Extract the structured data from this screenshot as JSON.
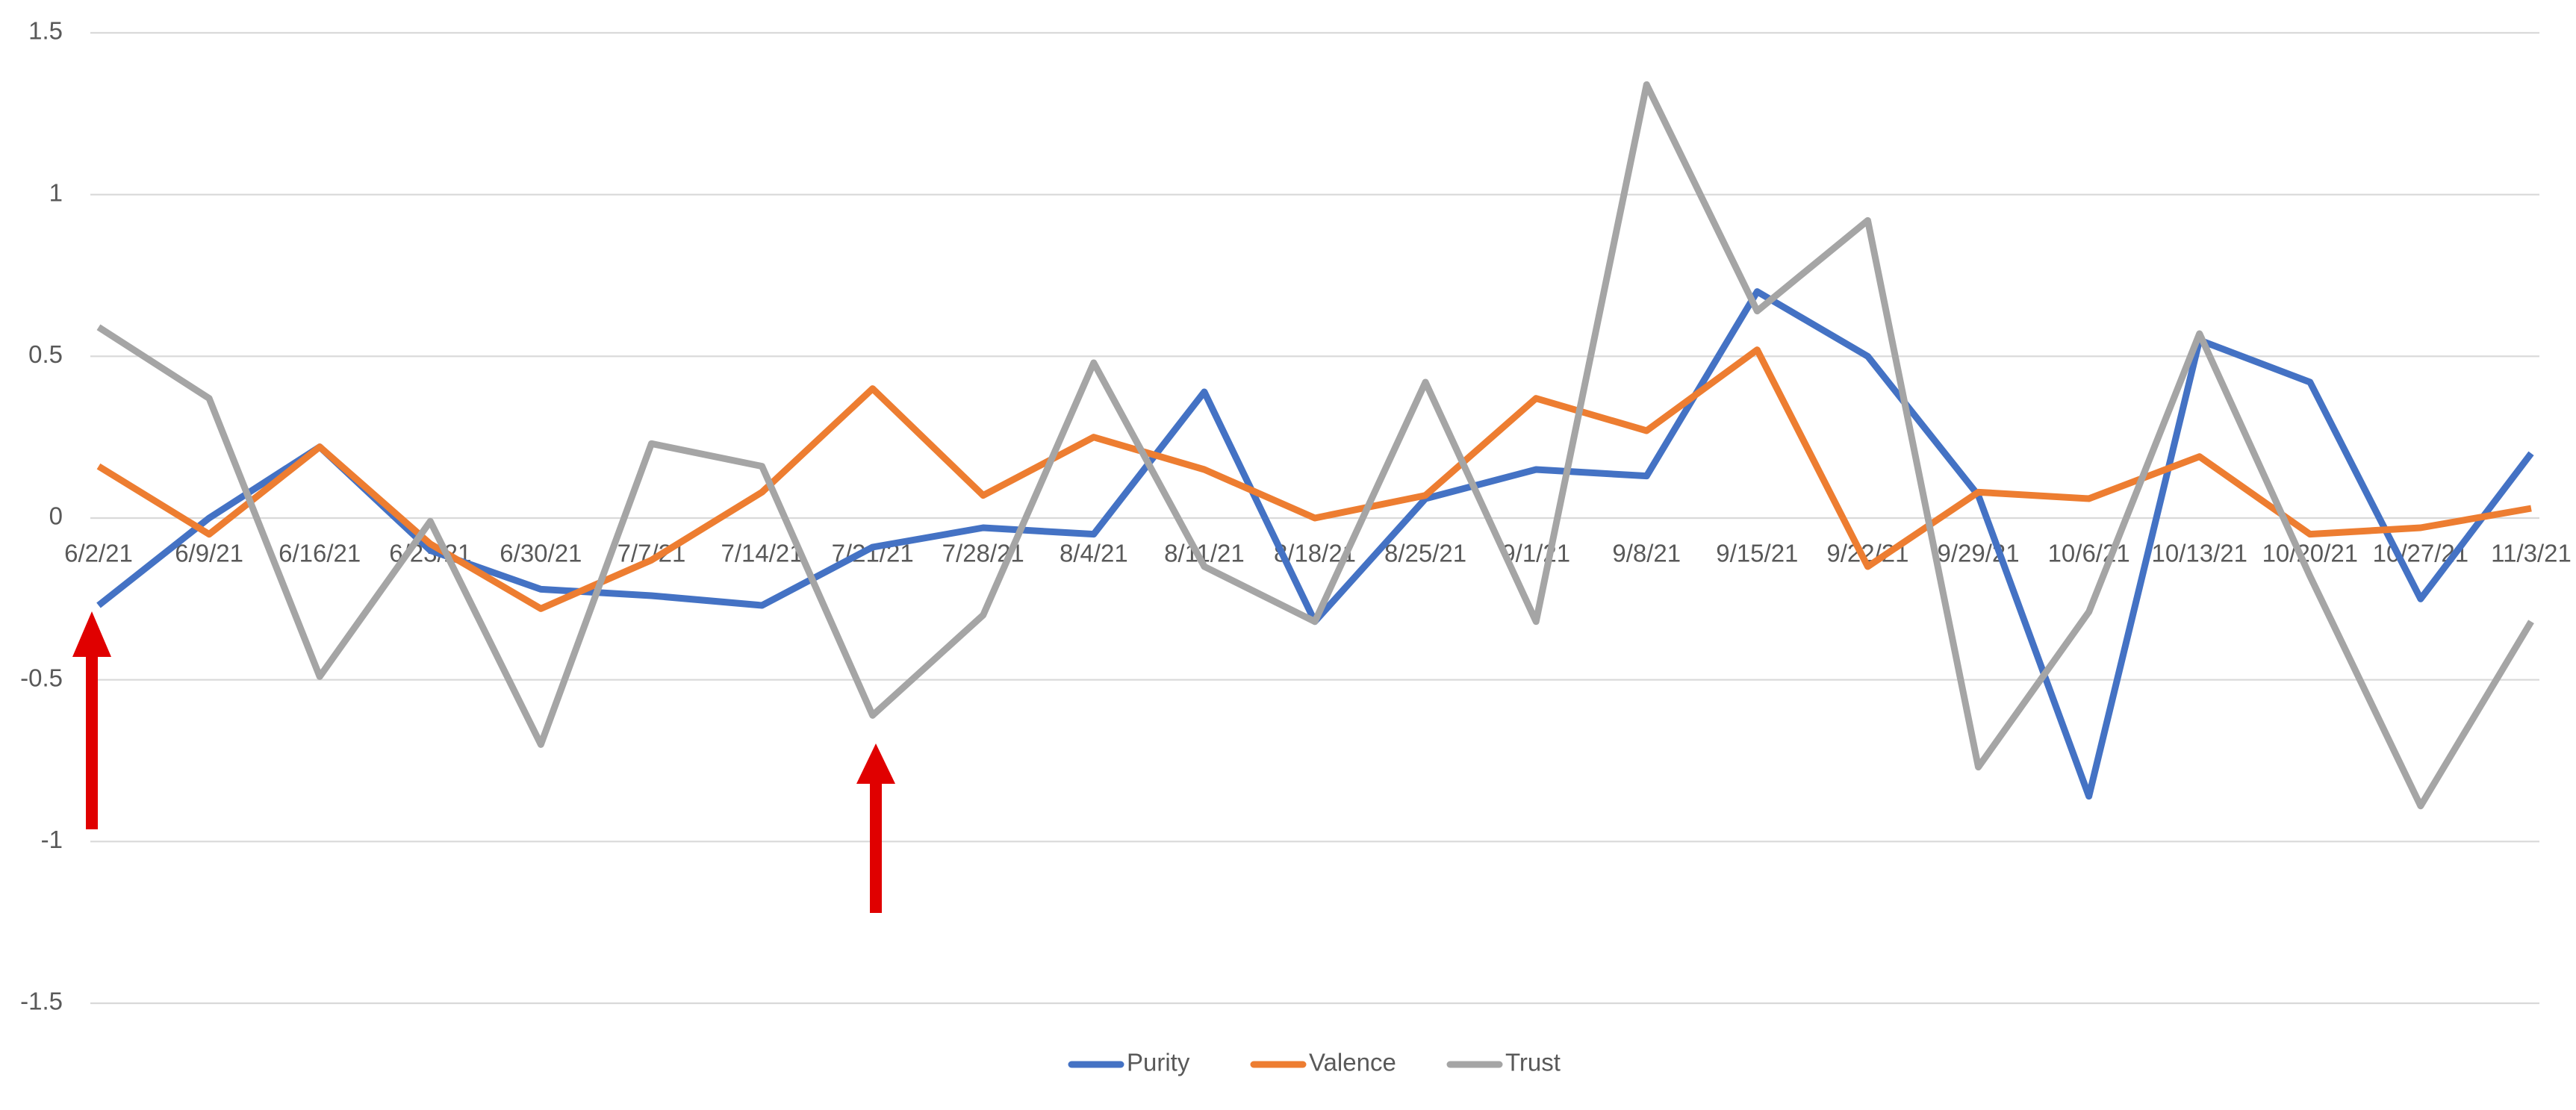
{
  "chart_data": {
    "type": "line",
    "categories": [
      "6/2/21",
      "6/9/21",
      "6/16/21",
      "6/23/21",
      "6/30/21",
      "7/7/21",
      "7/14/21",
      "7/21/21",
      "7/28/21",
      "8/4/21",
      "8/11/21",
      "8/18/21",
      "8/25/21",
      "9/1/21",
      "9/8/21",
      "9/15/21",
      "9/22/21",
      "9/29/21",
      "10/6/21",
      "10/13/21",
      "10/20/21",
      "10/27/21",
      "11/3/21"
    ],
    "series": [
      {
        "name": "Purity",
        "color": "#4472c4",
        "values": [
          -0.27,
          0.0,
          0.22,
          -0.1,
          -0.22,
          -0.24,
          -0.27,
          -0.09,
          -0.03,
          -0.05,
          0.39,
          -0.32,
          0.06,
          0.15,
          0.13,
          0.7,
          0.5,
          0.07,
          -0.86,
          0.55,
          0.42,
          -0.25,
          0.2
        ]
      },
      {
        "name": "Valence",
        "color": "#ed7d31",
        "values": [
          0.16,
          -0.05,
          0.22,
          -0.08,
          -0.28,
          -0.13,
          0.08,
          0.4,
          0.07,
          0.25,
          0.15,
          0.0,
          0.07,
          0.37,
          0.27,
          0.52,
          -0.15,
          0.08,
          0.06,
          0.19,
          -0.05,
          -0.03,
          0.03
        ]
      },
      {
        "name": "Trust",
        "color": "#a5a5a5",
        "values": [
          0.59,
          0.37,
          -0.49,
          -0.01,
          -0.7,
          0.23,
          0.16,
          -0.61,
          -0.3,
          0.48,
          -0.15,
          -0.32,
          0.42,
          -0.32,
          1.34,
          0.64,
          0.92,
          -0.77,
          -0.29,
          0.57,
          -0.18,
          -0.89,
          -0.32
        ]
      }
    ],
    "ylim": [
      -1.5,
      1.5
    ],
    "yticks": [
      -1.5,
      -1,
      -0.5,
      0,
      0.5,
      1,
      1.5
    ],
    "grid": true,
    "legend": "bottom"
  }
}
